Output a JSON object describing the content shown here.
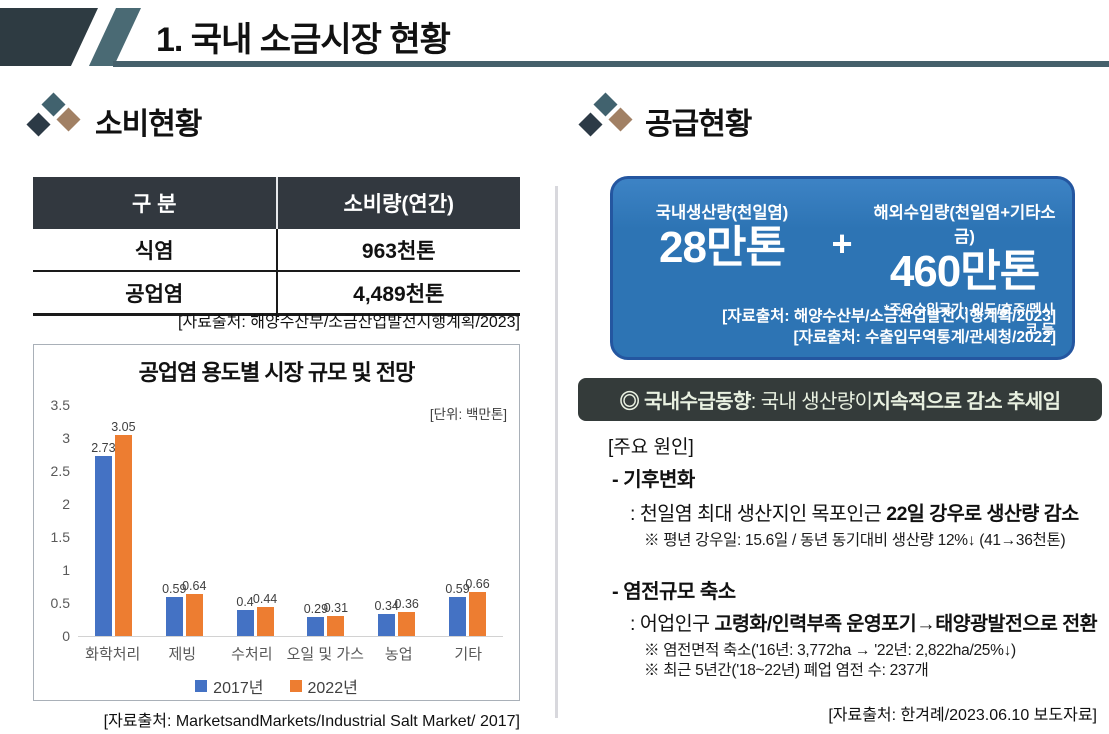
{
  "header": {
    "title": "1. 국내 소금시장 현황"
  },
  "colors": {
    "header_dark": "#2e3b42",
    "header_teal": "#4a6a74",
    "underline": "#45606b",
    "table_header_bg": "#32383f",
    "box_blue": "#2d74b4",
    "box_border": "#2456a0",
    "badge_bg": "#343b3a",
    "diamond_teal": "#41626e",
    "diamond_dark": "#2c3a46",
    "diamond_tan": "#a18064",
    "bar_2017": "#4472c4",
    "bar_2022": "#ed7d31"
  },
  "consumption": {
    "section_title": "소비현황",
    "table": {
      "headers": [
        "구 분",
        "소비량(연간)"
      ],
      "rows": [
        {
          "category": "식염",
          "value": "963천톤"
        },
        {
          "category": "공업염",
          "value": "4,489천톤"
        }
      ],
      "source": "[자료출처: 해양수산부/소금산업발전시행계획/2023]"
    },
    "chart_source": "[자료출처: MarketsandMarkets/Industrial Salt Market/ 2017]"
  },
  "chart_data": {
    "type": "bar",
    "title": "공업염 용도별 시장 규모 및 전망",
    "unit_note": "[단위: 백만톤]",
    "categories": [
      "화학처리",
      "제빙",
      "수처리",
      "오일 및 가스",
      "농업",
      "기타"
    ],
    "series": [
      {
        "name": "2017년",
        "color": "#4472c4",
        "values": [
          2.73,
          0.59,
          0.4,
          0.29,
          0.34,
          0.59
        ]
      },
      {
        "name": "2022년",
        "color": "#ed7d31",
        "values": [
          3.05,
          0.64,
          0.44,
          0.31,
          0.36,
          0.66
        ]
      }
    ],
    "ylim": [
      0,
      3.5
    ],
    "yticks": [
      0,
      0.5,
      1,
      1.5,
      2,
      2.5,
      3,
      3.5
    ],
    "grid": false,
    "legend_position": "bottom"
  },
  "supply": {
    "section_title": "공급현황",
    "box": {
      "domestic_label": "국내생산량(천일염)",
      "domestic_value": "28만톤",
      "plus": "+",
      "import_label": "해외수입량(천일염+기타소금)",
      "import_value": "460만톤",
      "import_note": "*주요수입국가: 인도/호주/멕시코 등",
      "sources": [
        "[자료출처: 해양수산부/소금산업발전시행계획/2023]",
        "[자료출처: 수출입무역통계/관세청/2022]"
      ]
    },
    "trend_badge": {
      "s1": "◎ 국내수급동향",
      "s2": " : 국내 생산량이 ",
      "s3": "지속적으로 감소 추세임"
    },
    "causes_heading": "[주요 원인]",
    "cause1": {
      "title": "- 기후변화",
      "line_prefix": ": 천일염 최대 생산지인 목포인근 ",
      "line_bold": "22일 강우로 생산량 감소",
      "note": "※ 평년 강우일: 15.6일 / 동년 동기대비 생산량 12%↓ (41→36천톤)"
    },
    "cause2": {
      "title": "- 염전규모 축소",
      "line_prefix": ": 어업인구 ",
      "line_bold": "고령화/인력부족 운영포기→태양광발전으로 전환",
      "note1": "※ 염전면적 축소('16년: 3,772ha → '22년: 2,822ha/25%↓)",
      "note2": "※ 최근 5년간('18~22년) 폐업 염전 수: 237개"
    },
    "source": "[자료출처: 한겨례/2023.06.10 보도자료]"
  }
}
